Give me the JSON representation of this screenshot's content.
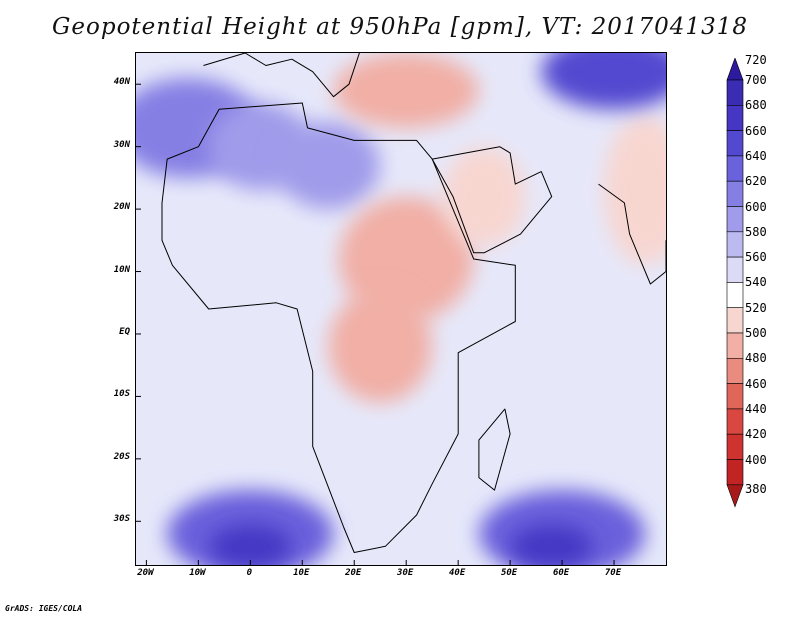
{
  "title": "Geopotential Height at 950hPa [gpm], VT: 2017041318",
  "credit": "GrADS: IGES/COLA",
  "map": {
    "lat_range": [
      -37,
      45
    ],
    "lon_range": [
      -22,
      80
    ],
    "lat_ticks": [
      {
        "label": "40N",
        "value": 40
      },
      {
        "label": "30N",
        "value": 30
      },
      {
        "label": "20N",
        "value": 20
      },
      {
        "label": "10N",
        "value": 10
      },
      {
        "label": "EQ",
        "value": 0
      },
      {
        "label": "10S",
        "value": -10
      },
      {
        "label": "20S",
        "value": -20
      },
      {
        "label": "30S",
        "value": -30
      }
    ],
    "lon_ticks": [
      {
        "label": "20W",
        "value": -20
      },
      {
        "label": "10W",
        "value": -10
      },
      {
        "label": "0",
        "value": 0
      },
      {
        "label": "10E",
        "value": 10
      },
      {
        "label": "20E",
        "value": 20
      },
      {
        "label": "30E",
        "value": 30
      },
      {
        "label": "40E",
        "value": 40
      },
      {
        "label": "50E",
        "value": 50
      },
      {
        "label": "60E",
        "value": 60
      },
      {
        "label": "70E",
        "value": 70
      }
    ],
    "regions": [
      {
        "name": "north-atlantic-high",
        "lon": -12,
        "lat": 33,
        "rx": 14,
        "ry": 8,
        "level": 620
      },
      {
        "name": "sahara-west-high",
        "lon": 2,
        "lat": 30,
        "rx": 10,
        "ry": 7,
        "level": 600
      },
      {
        "name": "sahara-east-high",
        "lon": 15,
        "lat": 27,
        "rx": 10,
        "ry": 7,
        "level": 600
      },
      {
        "name": "mediterranean-low",
        "lon": 30,
        "lat": 39,
        "rx": 14,
        "ry": 6,
        "level": 500
      },
      {
        "name": "sudan-low",
        "lon": 30,
        "lat": 12,
        "rx": 13,
        "ry": 10,
        "level": 500
      },
      {
        "name": "congo-low",
        "lon": 25,
        "lat": -2,
        "rx": 10,
        "ry": 9,
        "level": 500
      },
      {
        "name": "arabia-low",
        "lon": 45,
        "lat": 22,
        "rx": 8,
        "ry": 8,
        "level": 520
      },
      {
        "name": "india-low",
        "lon": 76,
        "lat": 23,
        "rx": 8,
        "ry": 12,
        "level": 520
      },
      {
        "name": "asia-high",
        "lon": 70,
        "lat": 42,
        "rx": 14,
        "ry": 6,
        "level": 660
      },
      {
        "name": "south-atlantic-high",
        "lon": 0,
        "lat": -32,
        "rx": 16,
        "ry": 7,
        "level": 640
      },
      {
        "name": "south-atlantic-core",
        "lon": 0,
        "lat": -34,
        "rx": 8,
        "ry": 3.5,
        "level": 680
      },
      {
        "name": "indian-ocean-high",
        "lon": 60,
        "lat": -32,
        "rx": 16,
        "ry": 7,
        "level": 640
      },
      {
        "name": "indian-ocean-core",
        "lon": 58,
        "lat": -34,
        "rx": 8,
        "ry": 3.5,
        "level": 680
      }
    ]
  },
  "colorbar": {
    "levels": [
      720,
      700,
      680,
      660,
      640,
      620,
      600,
      580,
      560,
      540,
      520,
      500,
      480,
      460,
      440,
      420,
      400,
      380
    ],
    "colors": [
      "#2d1a9e",
      "#3a2cb3",
      "#4537c4",
      "#5349d0",
      "#6a61dc",
      "#857fe4",
      "#a09bea",
      "#bdbaf0",
      "#dcdaf6",
      "#ffffff",
      "#f8d6d0",
      "#f1afa5",
      "#e98b7e",
      "#e0665a",
      "#d84740",
      "#cf3330",
      "#c22424",
      "#a81a1a"
    ]
  }
}
